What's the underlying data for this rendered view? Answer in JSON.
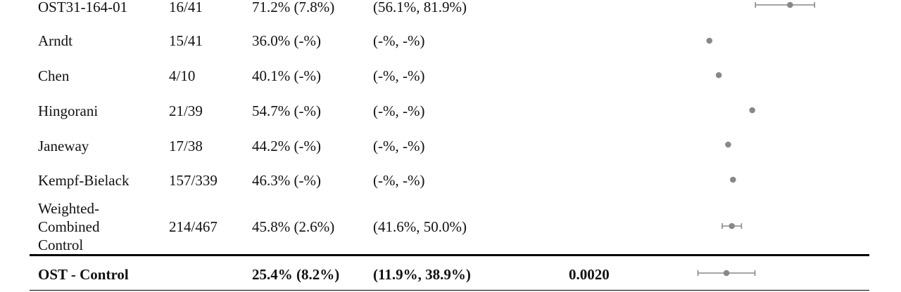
{
  "rows": [
    {
      "study": "OST31-164-01",
      "n": "16/41",
      "estimate": "71.2% (7.8%)",
      "ci": "(56.1%, 81.9%)",
      "pvalue": ""
    },
    {
      "study": "Arndt",
      "n": "15/41",
      "estimate": "36.0% (-%)",
      "ci": "(-%, -%)",
      "pvalue": ""
    },
    {
      "study": "Chen",
      "n": "4/10",
      "estimate": "40.1% (-%)",
      "ci": "(-%, -%)",
      "pvalue": ""
    },
    {
      "study": "Hingorani",
      "n": "21/39",
      "estimate": "54.7% (-%)",
      "ci": "(-%, -%)",
      "pvalue": ""
    },
    {
      "study": "Janeway",
      "n": "17/38",
      "estimate": "44.2% (-%)",
      "ci": "(-%, -%)",
      "pvalue": ""
    },
    {
      "study": "Kempf-Bielack",
      "n": "157/339",
      "estimate": "46.3% (-%)",
      "ci": "(-%, -%)",
      "pvalue": ""
    },
    {
      "study": "Weighted- Combined Control",
      "n": "214/467",
      "estimate": "45.8% (2.6%)",
      "ci": "(41.6%, 50.0%)",
      "pvalue": ""
    },
    {
      "study": "OST - Control",
      "n": "",
      "estimate": "25.4% (8.2%)",
      "ci": "(11.9%, 38.9%)",
      "pvalue": "0.0020"
    }
  ],
  "chart_data": {
    "type": "scatter",
    "title": "",
    "xlabel": "",
    "ylabel": "",
    "marker_color": "#888888",
    "series": [
      {
        "points": [
          {
            "label": "OST31-164-01",
            "estimate": 71.2,
            "lower": 56.1,
            "upper": 81.9
          },
          {
            "label": "Arndt",
            "estimate": 36.0
          },
          {
            "label": "Chen",
            "estimate": 40.1
          },
          {
            "label": "Hingorani",
            "estimate": 54.7
          },
          {
            "label": "Janeway",
            "estimate": 44.2
          },
          {
            "label": "Kempf-Bielack",
            "estimate": 46.3
          },
          {
            "label": "Weighted-Combined Control",
            "estimate": 45.8,
            "lower": 41.6,
            "upper": 50.0
          }
        ]
      },
      {
        "points": [
          {
            "label": "OST - Control",
            "estimate": 25.4,
            "lower": 11.9,
            "upper": 38.9
          }
        ]
      }
    ]
  }
}
